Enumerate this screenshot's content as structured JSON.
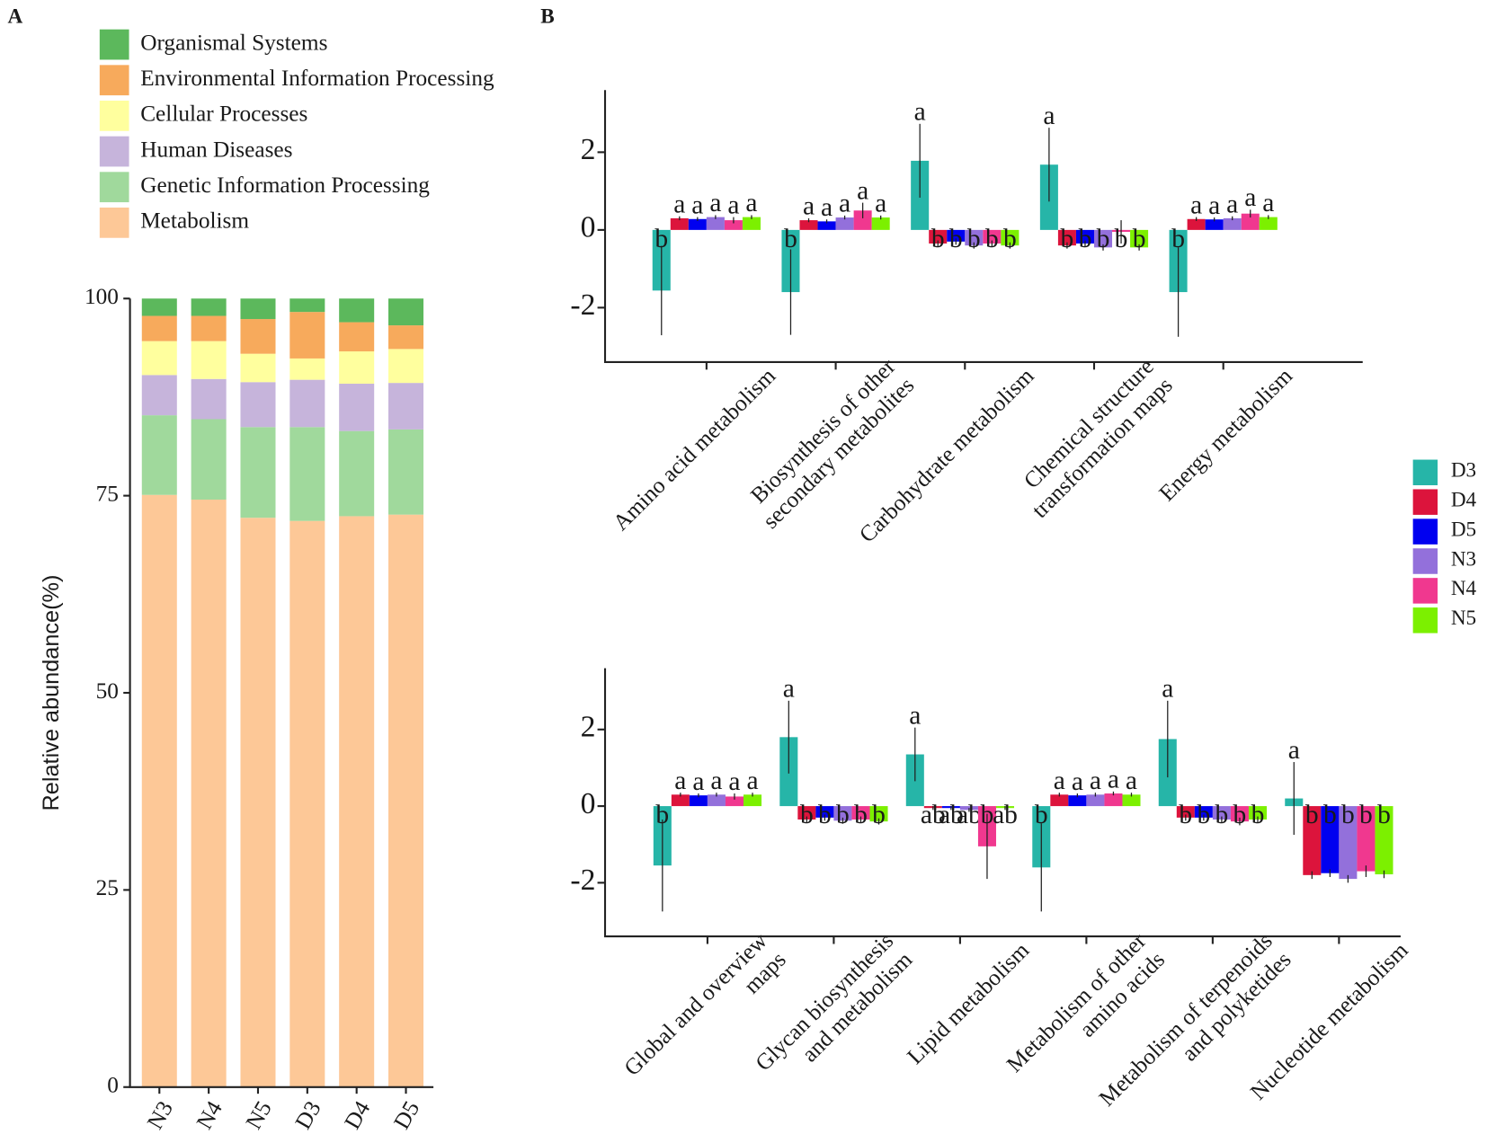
{
  "panel_labels": [
    "A",
    "B"
  ],
  "group_legend": [
    {
      "name": "D3",
      "color": "#26b5a8"
    },
    {
      "name": "D4",
      "color": "#dc143c"
    },
    {
      "name": "D5",
      "color": "#0000f0"
    },
    {
      "name": "N3",
      "color": "#9370db"
    },
    {
      "name": "N4",
      "color": "#f0388f"
    },
    {
      "name": "N5",
      "color": "#7cf000"
    }
  ],
  "chart_data": [
    {
      "type": "stacked_bar",
      "ylabel": "Relative abundance(%)",
      "categories": [
        "N3",
        "N4",
        "N5",
        "D3",
        "D4",
        "D5"
      ],
      "series": [
        {
          "name": "Metabolism",
          "color": "#fdc897",
          "values": [
            75.1,
            74.5,
            72.2,
            71.8,
            72.4,
            72.6
          ]
        },
        {
          "name": "Genetic Information Processing",
          "color": "#a0d99c",
          "values": [
            10.1,
            10.2,
            11.5,
            11.9,
            10.8,
            10.8
          ]
        },
        {
          "name": "Human Diseases",
          "color": "#c6b4db",
          "values": [
            5.1,
            5.1,
            5.7,
            6.0,
            6.0,
            5.9
          ]
        },
        {
          "name": "Cellular Processes",
          "color": "#ffff9e",
          "values": [
            4.3,
            4.8,
            3.6,
            2.7,
            4.1,
            4.3
          ]
        },
        {
          "name": "Environmental Information Processing",
          "color": "#f7aa5c",
          "values": [
            3.2,
            3.2,
            4.4,
            5.9,
            3.7,
            3.0
          ]
        },
        {
          "name": "Organismal Systems",
          "color": "#5cb85c",
          "values": [
            2.2,
            2.2,
            2.6,
            1.7,
            3.0,
            3.4
          ]
        }
      ],
      "ylim": [
        0,
        100
      ],
      "yticks": [
        0,
        25,
        50,
        75,
        100
      ]
    },
    {
      "type": "grouped_bar",
      "categories": [
        [
          "Amino acid metabolism"
        ],
        [
          "Biosynthesis of other",
          "secondary metabolites"
        ],
        [
          "Carbohydrate metabolism"
        ],
        [
          "Chemical structure",
          "transformation maps"
        ],
        [
          "Energy metabolism"
        ]
      ],
      "series": [
        {
          "values": [
            -1.56,
            -1.6,
            1.78,
            1.68,
            -1.6
          ],
          "errors": [
            1.15,
            1.1,
            0.95,
            0.95,
            1.15
          ],
          "letters": [
            "b",
            "b",
            "a",
            "a",
            "b"
          ]
        },
        {
          "values": [
            0.3,
            0.25,
            -0.35,
            -0.4,
            0.28
          ],
          "errors": [
            0.05,
            0.05,
            0.08,
            0.08,
            0.05
          ],
          "letters": [
            "a",
            "a",
            "b",
            "b",
            "a"
          ]
        },
        {
          "values": [
            0.28,
            0.22,
            -0.3,
            -0.35,
            0.27
          ],
          "errors": [
            0.05,
            0.05,
            0.08,
            0.08,
            0.05
          ],
          "letters": [
            "a",
            "a",
            "b",
            "b",
            "a"
          ]
        },
        {
          "values": [
            0.33,
            0.32,
            -0.4,
            -0.45,
            0.3
          ],
          "errors": [
            0.05,
            0.05,
            0.08,
            0.08,
            0.05
          ],
          "letters": [
            "a",
            "a",
            "b",
            "b",
            "a"
          ]
        },
        {
          "values": [
            0.25,
            0.5,
            -0.35,
            -0.05,
            0.42
          ],
          "errors": [
            0.08,
            0.2,
            0.08,
            0.3,
            0.1
          ],
          "letters": [
            "a",
            "a",
            "b",
            "b",
            "a"
          ]
        },
        {
          "values": [
            0.33,
            0.32,
            -0.4,
            -0.45,
            0.33
          ],
          "errors": [
            0.05,
            0.05,
            0.08,
            0.08,
            0.05
          ],
          "letters": [
            "a",
            "a",
            "b",
            "b",
            "a"
          ]
        }
      ],
      "ylim": [
        -3.4,
        3.6
      ],
      "yticks": [
        -2,
        0,
        2
      ]
    },
    {
      "type": "grouped_bar",
      "categories": [
        [
          "Global and overview",
          "maps"
        ],
        [
          "Glycan biosynthesis",
          "and metabolism"
        ],
        [
          "Lipid metabolism"
        ],
        [
          "Metabolism of other",
          "amino acids"
        ],
        [
          "Metabolism of terpenoids",
          "and polyketides"
        ],
        [
          "Nucleotide metabolism"
        ]
      ],
      "series": [
        {
          "values": [
            -1.55,
            1.8,
            1.35,
            -1.6,
            1.75,
            0.2
          ],
          "errors": [
            1.2,
            0.95,
            0.7,
            1.15,
            1.0,
            0.95
          ],
          "letters": [
            "b",
            "a",
            "a",
            "b",
            "a",
            "a"
          ]
        },
        {
          "values": [
            0.3,
            -0.35,
            -0.05,
            0.3,
            -0.3,
            -1.8
          ],
          "errors": [
            0.05,
            0.08,
            0.05,
            0.05,
            0.08,
            0.1
          ],
          "letters": [
            "a",
            "b",
            "ab",
            "a",
            "b",
            "b"
          ]
        },
        {
          "values": [
            0.28,
            -0.3,
            -0.05,
            0.28,
            -0.3,
            -1.75
          ],
          "errors": [
            0.05,
            0.08,
            0.05,
            0.05,
            0.08,
            0.1
          ],
          "letters": [
            "a",
            "b",
            "ab",
            "a",
            "b",
            "b"
          ]
        },
        {
          "values": [
            0.3,
            -0.38,
            -0.1,
            0.3,
            -0.35,
            -1.9
          ],
          "errors": [
            0.05,
            0.08,
            0.05,
            0.05,
            0.08,
            0.1
          ],
          "letters": [
            "a",
            "b",
            "ab",
            "a",
            "b",
            "b"
          ]
        },
        {
          "values": [
            0.25,
            -0.35,
            -1.05,
            0.33,
            -0.4,
            -1.7
          ],
          "errors": [
            0.08,
            0.08,
            0.85,
            0.05,
            0.1,
            0.15
          ],
          "letters": [
            "a",
            "b",
            "b",
            "a",
            "b",
            "b"
          ]
        },
        {
          "values": [
            0.3,
            -0.4,
            -0.05,
            0.3,
            -0.35,
            -1.78
          ],
          "errors": [
            0.05,
            0.08,
            0.05,
            0.05,
            0.08,
            0.1
          ],
          "letters": [
            "a",
            "b",
            "ab",
            "a",
            "b",
            "b"
          ]
        }
      ],
      "ylim": [
        -3.4,
        3.6
      ],
      "yticks": [
        -2,
        0,
        2
      ]
    }
  ]
}
